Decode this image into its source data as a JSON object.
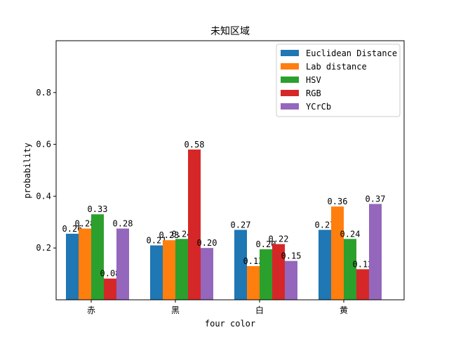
{
  "chart_data": {
    "type": "bar",
    "title": "未知区域",
    "xlabel": "four color",
    "ylabel": "probability",
    "categories": [
      "赤",
      "黑",
      "白",
      "黄"
    ],
    "ylim": [
      0,
      1
    ],
    "yticks": [
      0.2,
      0.4,
      0.6,
      0.8
    ],
    "ytick_labels": [
      "0.2",
      "0.4",
      "0.6",
      "0.8"
    ],
    "legend_position": "top-right",
    "series": [
      {
        "name": "Euclidean Distance",
        "color": "#1f77b4",
        "values": [
          0.255,
          0.21,
          0.27,
          0.27
        ],
        "labels": [
          "0.26",
          "0.21",
          "0.27",
          "0.27"
        ]
      },
      {
        "name": "Lab distance",
        "color": "#ff7f0e",
        "values": [
          0.275,
          0.23,
          0.13,
          0.36
        ],
        "labels": [
          "0.28",
          "0.23",
          "0.13",
          "0.36"
        ]
      },
      {
        "name": "HSV",
        "color": "#2ca02c",
        "values": [
          0.33,
          0.235,
          0.195,
          0.235
        ],
        "labels": [
          "0.33",
          "0.24",
          "0.20",
          "0.24"
        ]
      },
      {
        "name": "RGB",
        "color": "#d62728",
        "values": [
          0.082,
          0.58,
          0.215,
          0.118
        ],
        "labels": [
          "0.08",
          "0.58",
          "0.22",
          "0.12"
        ]
      },
      {
        "name": "YCrCb",
        "color": "#9467bd",
        "values": [
          0.275,
          0.2,
          0.15,
          0.37
        ],
        "labels": [
          "0.28",
          "0.20",
          "0.15",
          "0.37"
        ]
      }
    ]
  }
}
